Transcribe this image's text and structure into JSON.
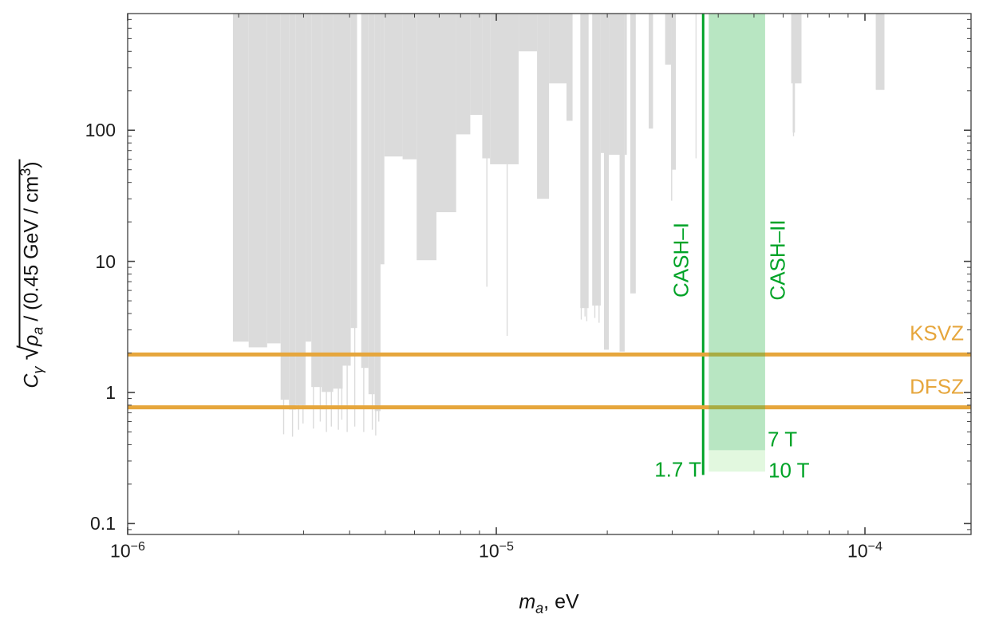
{
  "colors": {
    "excluded_gray": "#DBDBDB",
    "model_orange": "#E6A63C",
    "cash_green": "#00A327",
    "band_7t_fill": "rgba(20,158,80,0.20)",
    "band_10t_fill": "rgba(95,215,75,0.18)",
    "frame": "#3f3f3f"
  },
  "labels": {
    "x_axis": {
      "text": "ma, eV",
      "m": "m",
      "a": "a",
      "rest": ", eV"
    },
    "y_axis": {
      "text": "Cγ √( ρa / (0.45 GeV / cm³) )",
      "C": "C",
      "gamma": "γ",
      "sqrt": "√",
      "rho": "ρ",
      "a": "a",
      "mid": " / (0.45 GeV / cm",
      "exp": "3",
      "close": ")"
    }
  },
  "chart_data": {
    "type": "area",
    "title": "",
    "x_axis": {
      "label": "ma, eV",
      "scale": "log",
      "range_eV": [
        1e-06,
        0.000194
      ],
      "major_ticks": [
        1e-06,
        1e-05,
        0.0001
      ],
      "tick_labels": [
        "10⁻⁶",
        "10⁻⁵",
        "10⁻⁴"
      ],
      "tick_label_parts": [
        {
          "base": "10",
          "exp": "−6"
        },
        {
          "base": "10",
          "exp": "−5"
        },
        {
          "base": "10",
          "exp": "−4"
        }
      ]
    },
    "y_axis": {
      "label": "Cγ √( ρa / (0.45 GeV / cm³) )",
      "scale": "log",
      "range": [
        0.0826,
        776
      ],
      "major_ticks": [
        0.1,
        1,
        10,
        100
      ],
      "tick_labels": [
        "0.1",
        "1",
        "10",
        "100"
      ]
    },
    "grid": "off",
    "model_lines": [
      {
        "label": "KSVZ",
        "C": 1.95,
        "color": "#E6A63C"
      },
      {
        "label": "DFSZ",
        "C": 0.77,
        "color": "#E6A63C"
      }
    ],
    "cash_I": {
      "label": "CASH–I",
      "field": "1.7 T",
      "mass_eV": 3.64e-05,
      "C_reach": 0.235,
      "color": "#00A327"
    },
    "cash_II": {
      "label": "CASH–II",
      "mass_range_eV": [
        3.77e-05,
        5.36e-05
      ],
      "configs": [
        {
          "field": "7 T",
          "C_reach": 0.363
        },
        {
          "field": "10 T",
          "C_reach": 0.249
        }
      ],
      "color": "#00A327"
    },
    "excluded_region": {
      "color": "#DBDBDB",
      "bars_eV_C": [
        [
          1.93e-06,
          2.13e-06,
          2.44
        ],
        [
          2.13e-06,
          2.39e-06,
          2.21
        ],
        [
          2.39e-06,
          2.6e-06,
          2.37
        ],
        [
          2.6e-06,
          2.74e-06,
          0.88
        ],
        [
          2.74e-06,
          2.86e-06,
          0.74
        ],
        [
          2.86e-06,
          3.04e-06,
          0.8
        ],
        [
          3.04e-06,
          3.15e-06,
          2.44
        ],
        [
          3.15e-06,
          3.36e-06,
          1.1
        ],
        [
          3.36e-06,
          3.61e-06,
          1.01
        ],
        [
          3.61e-06,
          3.83e-06,
          1.07
        ],
        [
          3.83e-06,
          4.03e-06,
          1.6
        ],
        [
          4.03e-06,
          4.19e-06,
          3.1
        ],
        [
          4.3e-06,
          4.5e-06,
          1.54
        ],
        [
          4.5e-06,
          4.68e-06,
          0.97
        ],
        [
          4.68e-06,
          4.85e-06,
          0.72
        ],
        [
          4.85e-06,
          4.97e-06,
          9.5
        ],
        [
          4.97e-06,
          5.57e-06,
          63
        ],
        [
          5.57e-06,
          6.08e-06,
          60
        ],
        [
          6.08e-06,
          6.88e-06,
          10.2
        ],
        [
          6.88e-06,
          7.78e-06,
          23.7
        ],
        [
          7.78e-06,
          8.5e-06,
          93
        ],
        [
          8.5e-06,
          9.16e-06,
          131
        ],
        [
          9.16e-06,
          9.62e-06,
          61
        ],
        [
          9.62e-06,
          1.15e-05,
          55
        ],
        [
          1.15e-05,
          1.29e-05,
          400
        ],
        [
          1.29e-05,
          1.39e-05,
          30
        ],
        [
          1.39e-05,
          1.55e-05,
          228
        ],
        [
          1.55e-05,
          1.61e-05,
          118
        ],
        [
          1.69e-05,
          1.78e-05,
          4.4
        ],
        [
          1.82e-05,
          1.92e-05,
          4.6
        ],
        [
          1.92e-05,
          1.96e-05,
          67
        ],
        [
          1.96e-05,
          2.02e-05,
          2.12
        ],
        [
          2.02e-05,
          2.16e-05,
          65
        ],
        [
          2.16e-05,
          2.23e-05,
          2.05
        ],
        [
          2.23e-05,
          2.26e-05,
          65
        ],
        [
          2.31e-05,
          2.39e-05,
          5.7
        ],
        [
          2.59e-05,
          2.66e-05,
          103
        ],
        [
          2.87e-05,
          2.98e-05,
          316
        ],
        [
          2.98e-05,
          3.07e-05,
          50
        ],
        [
          3.47e-05,
          3.49e-05,
          61
        ],
        [
          6.31e-05,
          6.73e-05,
          228
        ],
        [
          6.37e-05,
          6.46e-05,
          96
        ],
        [
          0.000107,
          0.000113,
          203
        ]
      ],
      "spikes_eV_C": [
        [
          2.65e-06,
          0.48
        ],
        [
          2.8e-06,
          0.46
        ],
        [
          2.91e-06,
          0.52
        ],
        [
          2.99e-06,
          0.58
        ],
        [
          3.19e-06,
          0.53
        ],
        [
          3.33e-06,
          0.6
        ],
        [
          3.46e-06,
          0.5
        ],
        [
          3.57e-06,
          0.55
        ],
        [
          3.73e-06,
          0.52
        ],
        [
          3.81e-06,
          0.62
        ],
        [
          3.94e-06,
          0.5
        ],
        [
          4.13e-06,
          0.55
        ],
        [
          4.37e-06,
          0.5
        ],
        [
          4.61e-06,
          0.52
        ],
        [
          4.71e-06,
          0.47
        ],
        [
          4.8e-06,
          0.6
        ],
        [
          9.43e-06,
          6.4
        ],
        [
          1.07e-05,
          2.7
        ],
        [
          1.7e-05,
          3.6
        ],
        [
          1.74e-05,
          3.8
        ],
        [
          1.76e-05,
          3.5
        ],
        [
          1.85e-05,
          3.7
        ],
        [
          1.9e-05,
          3.4
        ],
        [
          2.99e-05,
          29
        ],
        [
          6.4e-05,
          90
        ]
      ]
    }
  }
}
